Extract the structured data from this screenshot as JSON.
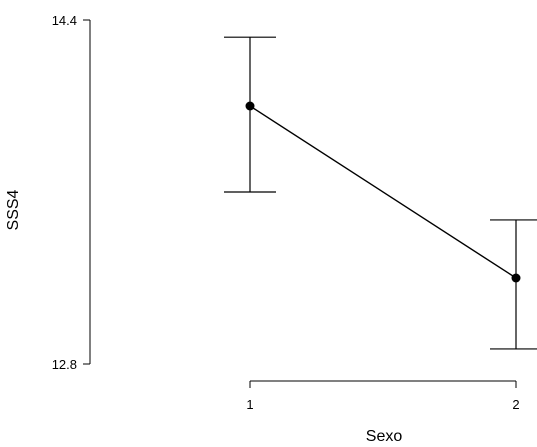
{
  "chart_data": {
    "type": "line",
    "xlabel": "Sexo",
    "ylabel": "SSS4",
    "categories": [
      "1",
      "2"
    ],
    "y_ticks": [
      "12.8",
      "14.4"
    ],
    "ylim": [
      12.8,
      14.4
    ],
    "grid": false,
    "legend": "none",
    "series": [
      {
        "values": [
          14.0,
          13.2
        ],
        "error_low": [
          13.6,
          12.87
        ],
        "error_high": [
          14.32,
          13.47
        ]
      }
    ],
    "colors": {
      "line": "#000000",
      "point": "#000000"
    }
  }
}
